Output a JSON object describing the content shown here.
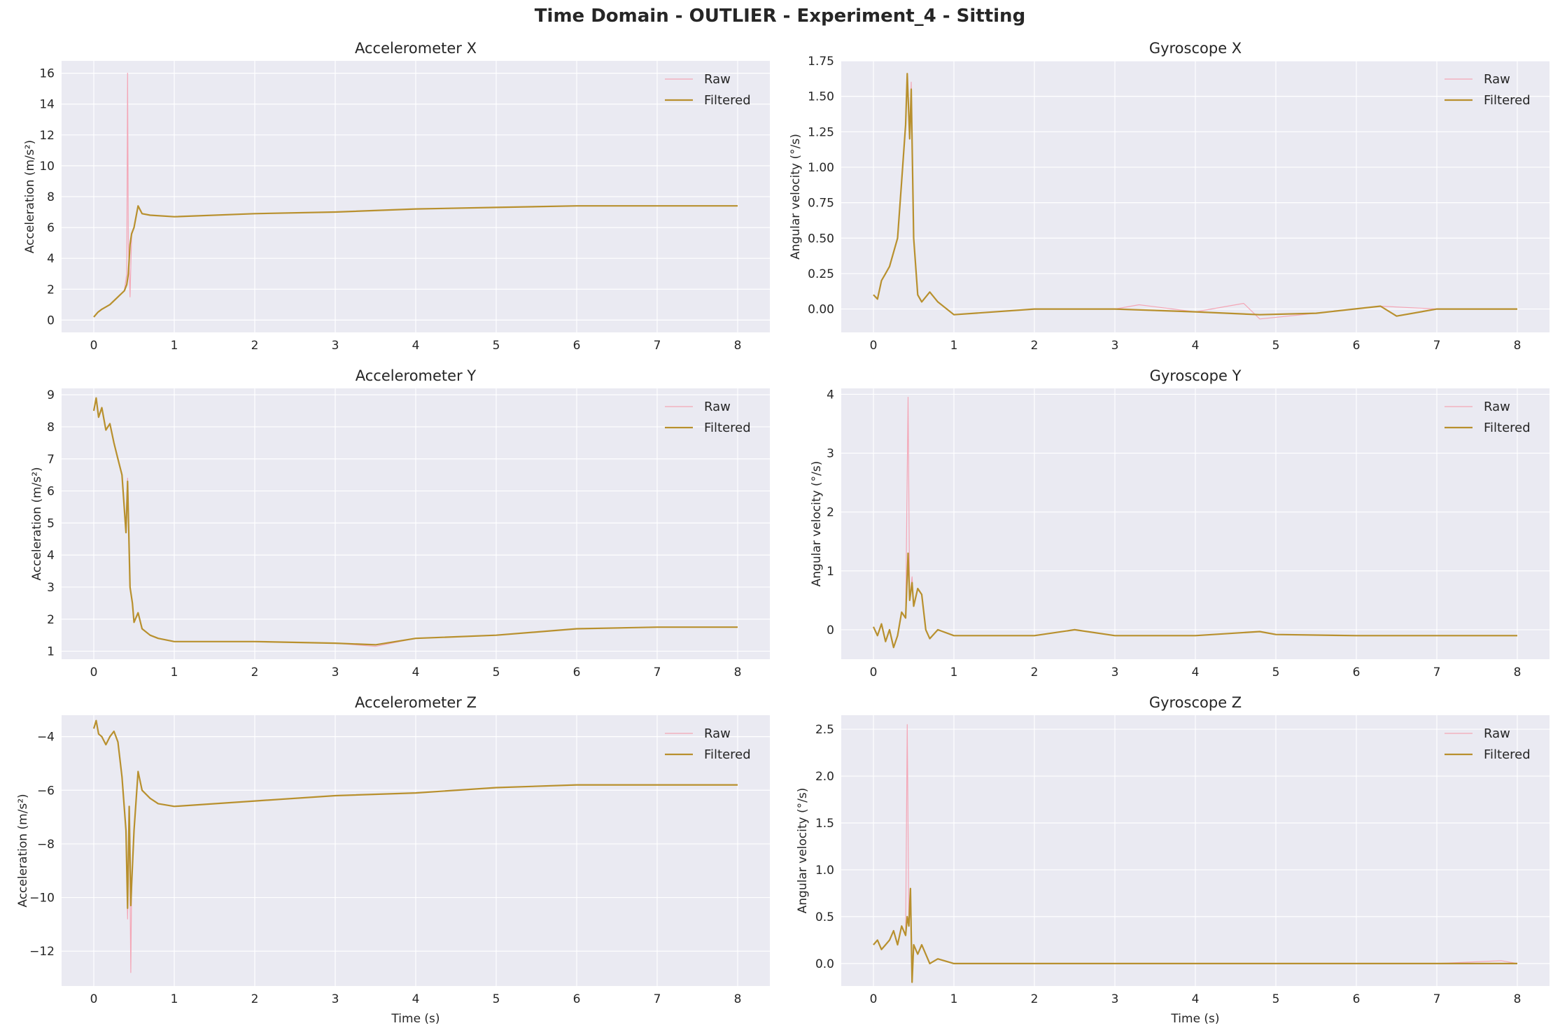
{
  "figure": {
    "suptitle": "Time Domain - OUTLIER - Experiment_4 - Sitting",
    "colors": {
      "raw": "#f4a6b6",
      "filtered": "#b8902e",
      "plot_bg": "#eaeaf2",
      "grid": "#ffffff"
    }
  },
  "chart_data": [
    {
      "type": "line",
      "title": "Accelerometer X",
      "xlabel": "",
      "ylabel": "Acceleration (m/s²)",
      "xlim": [
        -0.4,
        8.4
      ],
      "ylim": [
        -0.8,
        16.8
      ],
      "xticks": [
        0,
        1,
        2,
        3,
        4,
        5,
        6,
        7,
        8
      ],
      "yticks": [
        0,
        2,
        4,
        6,
        8,
        10,
        12,
        14,
        16
      ],
      "yticklabels": [
        "0",
        "2",
        "4",
        "6",
        "8",
        "10",
        "12",
        "14",
        "16"
      ],
      "grid": true,
      "legend_position": "top-right",
      "series": [
        {
          "name": "Raw",
          "x": [
            0,
            0.05,
            0.1,
            0.2,
            0.3,
            0.38,
            0.41,
            0.42,
            0.43,
            0.45,
            0.47,
            0.5,
            0.55,
            0.6,
            0.7,
            1.0,
            2.0,
            3.0,
            4.0,
            5.0,
            6.0,
            7.0,
            8.0
          ],
          "y": [
            0.2,
            0.5,
            0.7,
            1.0,
            1.5,
            1.9,
            3.0,
            16.0,
            5.0,
            1.5,
            5.5,
            6.0,
            7.4,
            6.9,
            6.8,
            6.7,
            6.9,
            7.0,
            7.2,
            7.3,
            7.4,
            7.4,
            7.4
          ]
        },
        {
          "name": "Filtered",
          "x": [
            0,
            0.05,
            0.1,
            0.2,
            0.3,
            0.38,
            0.41,
            0.43,
            0.45,
            0.47,
            0.5,
            0.55,
            0.6,
            0.7,
            1.0,
            2.0,
            3.0,
            4.0,
            5.0,
            6.0,
            7.0,
            8.0
          ],
          "y": [
            0.2,
            0.5,
            0.7,
            1.0,
            1.5,
            1.9,
            2.3,
            3.0,
            4.9,
            5.6,
            6.0,
            7.4,
            6.9,
            6.8,
            6.7,
            6.9,
            7.0,
            7.2,
            7.3,
            7.4,
            7.4,
            7.4
          ]
        }
      ]
    },
    {
      "type": "line",
      "title": "Gyroscope X",
      "xlabel": "",
      "ylabel": "Angular velocity (°/s)",
      "xlim": [
        -0.4,
        8.4
      ],
      "ylim": [
        -0.165,
        1.75
      ],
      "xticks": [
        0,
        1,
        2,
        3,
        4,
        5,
        6,
        7,
        8
      ],
      "yticks": [
        0,
        0.25,
        0.5,
        0.75,
        1.0,
        1.25,
        1.5,
        1.75
      ],
      "yticklabels": [
        "0.00",
        "0.25",
        "0.50",
        "0.75",
        "1.00",
        "1.25",
        "1.50",
        "1.75"
      ],
      "grid": true,
      "legend_position": "top-right",
      "series": [
        {
          "name": "Raw",
          "x": [
            0,
            0.05,
            0.1,
            0.15,
            0.2,
            0.3,
            0.35,
            0.4,
            0.42,
            0.45,
            0.47,
            0.5,
            0.55,
            0.6,
            0.7,
            0.8,
            1.0,
            2.0,
            3.0,
            3.3,
            4.0,
            4.6,
            4.8,
            5.5,
            6.3,
            7.0,
            8.0
          ],
          "y": [
            0.1,
            0.07,
            0.2,
            0.25,
            0.3,
            0.5,
            0.9,
            1.3,
            1.66,
            1.2,
            1.6,
            0.5,
            0.1,
            0.05,
            0.12,
            0.05,
            -0.04,
            0.0,
            0.0,
            0.03,
            -0.02,
            0.04,
            -0.07,
            -0.03,
            0.02,
            0.0,
            0.0
          ]
        },
        {
          "name": "Filtered",
          "x": [
            0,
            0.05,
            0.1,
            0.15,
            0.2,
            0.3,
            0.35,
            0.4,
            0.42,
            0.45,
            0.47,
            0.5,
            0.55,
            0.6,
            0.7,
            0.8,
            1.0,
            2.0,
            3.0,
            4.0,
            4.8,
            5.5,
            6.3,
            6.5,
            7.0,
            8.0
          ],
          "y": [
            0.1,
            0.07,
            0.2,
            0.25,
            0.3,
            0.5,
            0.9,
            1.3,
            1.66,
            1.2,
            1.55,
            0.5,
            0.1,
            0.05,
            0.12,
            0.05,
            -0.04,
            0.0,
            0.0,
            -0.02,
            -0.04,
            -0.03,
            0.02,
            -0.05,
            0.0,
            0.0
          ]
        }
      ]
    },
    {
      "type": "line",
      "title": "Accelerometer Y",
      "xlabel": "",
      "ylabel": "Acceleration (m/s²)",
      "xlim": [
        -0.4,
        8.4
      ],
      "ylim": [
        0.75,
        9.2
      ],
      "xticks": [
        0,
        1,
        2,
        3,
        4,
        5,
        6,
        7,
        8
      ],
      "yticks": [
        1,
        2,
        3,
        4,
        5,
        6,
        7,
        8,
        9
      ],
      "yticklabels": [
        "1",
        "2",
        "3",
        "4",
        "5",
        "6",
        "7",
        "8",
        "9"
      ],
      "grid": true,
      "legend_position": "top-right",
      "series": [
        {
          "name": "Raw",
          "x": [
            0,
            0.03,
            0.06,
            0.1,
            0.15,
            0.2,
            0.25,
            0.3,
            0.35,
            0.4,
            0.42,
            0.45,
            0.48,
            0.5,
            0.55,
            0.6,
            0.7,
            0.8,
            1.0,
            2.0,
            3.0,
            3.5,
            4.0,
            5.0,
            6.0,
            7.0,
            8.0
          ],
          "y": [
            8.5,
            8.9,
            8.3,
            8.6,
            7.9,
            8.1,
            7.5,
            7.0,
            6.5,
            4.7,
            6.4,
            3.0,
            2.5,
            1.9,
            2.2,
            1.7,
            1.5,
            1.4,
            1.3,
            1.3,
            1.25,
            1.15,
            1.4,
            1.5,
            1.7,
            1.75,
            1.75
          ]
        },
        {
          "name": "Filtered",
          "x": [
            0,
            0.03,
            0.06,
            0.1,
            0.15,
            0.2,
            0.25,
            0.3,
            0.35,
            0.4,
            0.42,
            0.45,
            0.48,
            0.5,
            0.55,
            0.6,
            0.7,
            0.8,
            1.0,
            2.0,
            3.0,
            3.5,
            4.0,
            5.0,
            6.0,
            7.0,
            8.0
          ],
          "y": [
            8.5,
            8.9,
            8.3,
            8.6,
            7.9,
            8.1,
            7.5,
            7.0,
            6.5,
            4.7,
            6.3,
            3.0,
            2.5,
            1.9,
            2.2,
            1.7,
            1.5,
            1.4,
            1.3,
            1.3,
            1.25,
            1.2,
            1.4,
            1.5,
            1.7,
            1.75,
            1.75
          ]
        }
      ]
    },
    {
      "type": "line",
      "title": "Gyroscope Y",
      "xlabel": "",
      "ylabel": "Angular velocity (°/s)",
      "xlim": [
        -0.4,
        8.4
      ],
      "ylim": [
        -0.5,
        4.1
      ],
      "xticks": [
        0,
        1,
        2,
        3,
        4,
        5,
        6,
        7,
        8
      ],
      "yticks": [
        0,
        1,
        2,
        3,
        4
      ],
      "yticklabels": [
        "0",
        "1",
        "2",
        "3",
        "4"
      ],
      "grid": true,
      "legend_position": "top-right",
      "series": [
        {
          "name": "Raw",
          "x": [
            0,
            0.05,
            0.1,
            0.15,
            0.2,
            0.25,
            0.3,
            0.35,
            0.4,
            0.43,
            0.45,
            0.48,
            0.5,
            0.55,
            0.6,
            0.65,
            0.7,
            0.8,
            1.0,
            2.0,
            2.5,
            3.0,
            4.0,
            4.8,
            5.0,
            6.0,
            7.0,
            8.0
          ],
          "y": [
            0.05,
            -0.1,
            0.1,
            -0.2,
            0.0,
            -0.3,
            -0.1,
            0.3,
            0.2,
            3.95,
            0.5,
            0.9,
            0.4,
            0.7,
            0.6,
            0.0,
            -0.15,
            0.0,
            -0.1,
            -0.1,
            0.0,
            -0.1,
            -0.1,
            -0.03,
            -0.08,
            -0.1,
            -0.1,
            -0.1
          ]
        },
        {
          "name": "Filtered",
          "x": [
            0,
            0.05,
            0.1,
            0.15,
            0.2,
            0.25,
            0.3,
            0.35,
            0.4,
            0.43,
            0.45,
            0.48,
            0.5,
            0.55,
            0.6,
            0.65,
            0.7,
            0.8,
            1.0,
            2.0,
            2.5,
            3.0,
            4.0,
            4.8,
            5.0,
            6.0,
            7.0,
            8.0
          ],
          "y": [
            0.05,
            -0.1,
            0.1,
            -0.2,
            0.0,
            -0.3,
            -0.1,
            0.3,
            0.2,
            1.3,
            0.5,
            0.8,
            0.4,
            0.7,
            0.6,
            0.0,
            -0.15,
            0.0,
            -0.1,
            -0.1,
            0.0,
            -0.1,
            -0.1,
            -0.03,
            -0.08,
            -0.1,
            -0.1,
            -0.1
          ]
        }
      ]
    },
    {
      "type": "line",
      "title": "Accelerometer Z",
      "xlabel": "Time (s)",
      "ylabel": "Acceleration (m/s²)",
      "xlim": [
        -0.4,
        8.4
      ],
      "ylim": [
        -13.3,
        -3.2
      ],
      "xticks": [
        0,
        1,
        2,
        3,
        4,
        5,
        6,
        7,
        8
      ],
      "yticks": [
        -12,
        -10,
        -8,
        -6,
        -4
      ],
      "yticklabels": [
        "−12",
        "−10",
        "−8",
        "−6",
        "−4"
      ],
      "grid": true,
      "legend_position": "top-right",
      "series": [
        {
          "name": "Raw",
          "x": [
            0,
            0.03,
            0.06,
            0.1,
            0.15,
            0.2,
            0.25,
            0.3,
            0.35,
            0.4,
            0.42,
            0.44,
            0.46,
            0.47,
            0.5,
            0.55,
            0.6,
            0.7,
            0.8,
            1.0,
            2.0,
            3.0,
            4.0,
            5.0,
            6.0,
            7.0,
            8.0
          ],
          "y": [
            -3.7,
            -3.4,
            -3.9,
            -4.0,
            -4.3,
            -4.0,
            -3.8,
            -4.2,
            -5.5,
            -7.5,
            -10.8,
            -6.6,
            -12.8,
            -9.5,
            -7.5,
            -5.3,
            -6.0,
            -6.3,
            -6.5,
            -6.6,
            -6.4,
            -6.2,
            -6.1,
            -5.9,
            -5.8,
            -5.8,
            -5.8
          ]
        },
        {
          "name": "Filtered",
          "x": [
            0,
            0.03,
            0.06,
            0.1,
            0.15,
            0.2,
            0.25,
            0.3,
            0.35,
            0.4,
            0.42,
            0.44,
            0.46,
            0.47,
            0.5,
            0.55,
            0.6,
            0.7,
            0.8,
            1.0,
            2.0,
            3.0,
            4.0,
            5.0,
            6.0,
            7.0,
            8.0
          ],
          "y": [
            -3.7,
            -3.4,
            -3.9,
            -4.0,
            -4.3,
            -4.0,
            -3.8,
            -4.2,
            -5.5,
            -7.5,
            -10.4,
            -6.6,
            -10.3,
            -9.5,
            -7.5,
            -5.3,
            -6.0,
            -6.3,
            -6.5,
            -6.6,
            -6.4,
            -6.2,
            -6.1,
            -5.9,
            -5.8,
            -5.8,
            -5.8
          ]
        }
      ]
    },
    {
      "type": "line",
      "title": "Gyroscope Z",
      "xlabel": "Time (s)",
      "ylabel": "Angular velocity (°/s)",
      "xlim": [
        -0.4,
        8.4
      ],
      "ylim": [
        -0.24,
        2.65
      ],
      "xticks": [
        0,
        1,
        2,
        3,
        4,
        5,
        6,
        7,
        8
      ],
      "yticks": [
        0,
        0.5,
        1.0,
        1.5,
        2.0,
        2.5
      ],
      "yticklabels": [
        "0.0",
        "0.5",
        "1.0",
        "1.5",
        "2.0",
        "2.5"
      ],
      "grid": true,
      "legend_position": "top-right",
      "series": [
        {
          "name": "Raw",
          "x": [
            0,
            0.05,
            0.1,
            0.15,
            0.2,
            0.25,
            0.3,
            0.35,
            0.4,
            0.42,
            0.44,
            0.46,
            0.48,
            0.5,
            0.55,
            0.6,
            0.7,
            0.8,
            1.0,
            2.0,
            3.0,
            4.0,
            5.0,
            6.0,
            7.0,
            7.8,
            8.0
          ],
          "y": [
            0.2,
            0.25,
            0.15,
            0.2,
            0.25,
            0.35,
            0.2,
            0.4,
            0.3,
            2.55,
            0.4,
            0.8,
            -0.2,
            0.2,
            0.1,
            0.2,
            0.0,
            0.05,
            0.0,
            0.0,
            0.0,
            0.0,
            0.0,
            0.0,
            0.0,
            0.03,
            0.0
          ]
        },
        {
          "name": "Filtered",
          "x": [
            0,
            0.05,
            0.1,
            0.15,
            0.2,
            0.25,
            0.3,
            0.35,
            0.4,
            0.42,
            0.44,
            0.46,
            0.48,
            0.5,
            0.55,
            0.6,
            0.7,
            0.8,
            1.0,
            2.0,
            3.0,
            4.0,
            5.0,
            6.0,
            7.0,
            8.0
          ],
          "y": [
            0.2,
            0.25,
            0.15,
            0.2,
            0.25,
            0.35,
            0.2,
            0.4,
            0.3,
            0.5,
            0.4,
            0.8,
            -0.2,
            0.2,
            0.1,
            0.2,
            0.0,
            0.05,
            0.0,
            0.0,
            0.0,
            0.0,
            0.0,
            0.0,
            0.0,
            0.0
          ]
        }
      ]
    }
  ]
}
